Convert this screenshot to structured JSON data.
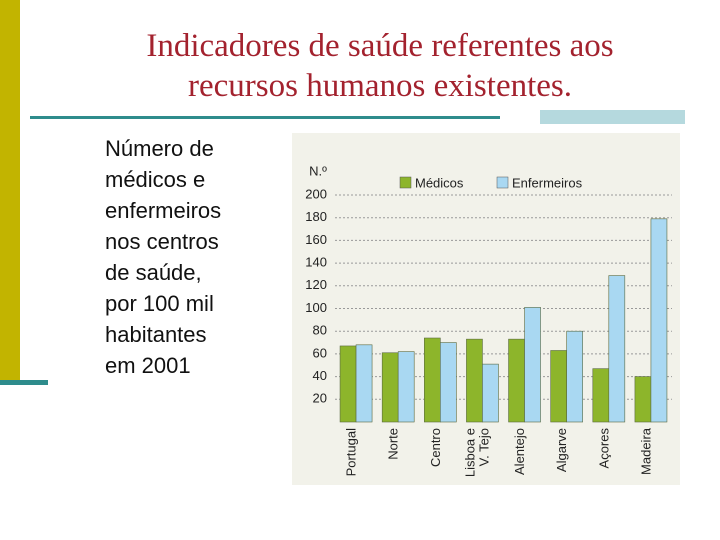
{
  "slide": {
    "title": [
      "Indicadores de saúde referentes aos",
      "recursos humanos existentes."
    ],
    "body": [
      "Número de",
      "médicos e",
      "enfermeiros",
      "nos centros",
      "de saúde,",
      "por 100 mil",
      "habitantes",
      "em 2001"
    ]
  },
  "chart_data": {
    "type": "bar",
    "y_label": "N.º",
    "categories": [
      "Portugal",
      "Norte",
      "Centro",
      "Lisboa e V. Tejo",
      "Alentejo",
      "Algarve",
      "Açores",
      "Madeira"
    ],
    "series": [
      {
        "name": "Médicos",
        "color": "#8db52b",
        "values": [
          67,
          61,
          74,
          73,
          73,
          63,
          47,
          40
        ]
      },
      {
        "name": "Enfermeiros",
        "color": "#a9d8f2",
        "values": [
          68,
          62,
          70,
          51,
          101,
          80,
          129,
          179
        ]
      }
    ],
    "ylim": [
      0,
      200
    ],
    "yticks": [
      20,
      40,
      60,
      80,
      100,
      120,
      140,
      160,
      180,
      200
    ],
    "grid": true
  }
}
